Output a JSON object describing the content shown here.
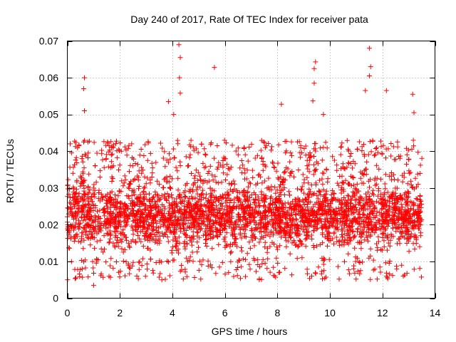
{
  "chart_data": {
    "type": "scatter",
    "title": "Day 240 of 2017, Rate Of TEC Index for receiver pata",
    "xlabel": "GPS time / hours",
    "ylabel": "ROTI / TECUs",
    "xlim": [
      0,
      14
    ],
    "ylim": [
      0,
      0.07
    ],
    "x_ticks": [
      0,
      2,
      4,
      6,
      8,
      10,
      12,
      14
    ],
    "x_tick_labels": [
      "0",
      "2",
      "4",
      "6",
      "8",
      "10",
      "12",
      "14"
    ],
    "y_ticks": [
      0,
      0.01,
      0.02,
      0.03,
      0.04,
      0.05,
      0.06,
      0.07
    ],
    "y_tick_labels": [
      "0",
      "0.01",
      "0.02",
      "0.03",
      "0.04",
      "0.05",
      "0.06",
      "0.07"
    ],
    "grid": true,
    "marker": "+",
    "color": "#ff0000",
    "series": [
      {
        "name": "ROTI",
        "x_range": [
          0,
          13.5
        ],
        "typical_band": [
          0.01,
          0.035
        ],
        "notable_points": [
          {
            "x": 0.65,
            "y": 0.06
          },
          {
            "x": 0.62,
            "y": 0.057
          },
          {
            "x": 0.65,
            "y": 0.051
          },
          {
            "x": 3.85,
            "y": 0.0535
          },
          {
            "x": 4.05,
            "y": 0.05
          },
          {
            "x": 4.25,
            "y": 0.069
          },
          {
            "x": 4.3,
            "y": 0.0655
          },
          {
            "x": 4.27,
            "y": 0.06
          },
          {
            "x": 4.3,
            "y": 0.0558
          },
          {
            "x": 5.6,
            "y": 0.0628
          },
          {
            "x": 8.15,
            "y": 0.0528
          },
          {
            "x": 9.45,
            "y": 0.0643
          },
          {
            "x": 9.4,
            "y": 0.0625
          },
          {
            "x": 9.4,
            "y": 0.0585
          },
          {
            "x": 9.35,
            "y": 0.0537
          },
          {
            "x": 9.75,
            "y": 0.05
          },
          {
            "x": 11.35,
            "y": 0.0565
          },
          {
            "x": 11.5,
            "y": 0.068
          },
          {
            "x": 11.55,
            "y": 0.063
          },
          {
            "x": 11.5,
            "y": 0.0605
          },
          {
            "x": 12.15,
            "y": 0.0565
          },
          {
            "x": 13.15,
            "y": 0.0555
          },
          {
            "x": 13.2,
            "y": 0.0505
          },
          {
            "x": 1.0,
            "y": 0.0035
          },
          {
            "x": 10.35,
            "y": 0.0052
          },
          {
            "x": 11.8,
            "y": 0.0052
          }
        ]
      }
    ]
  }
}
